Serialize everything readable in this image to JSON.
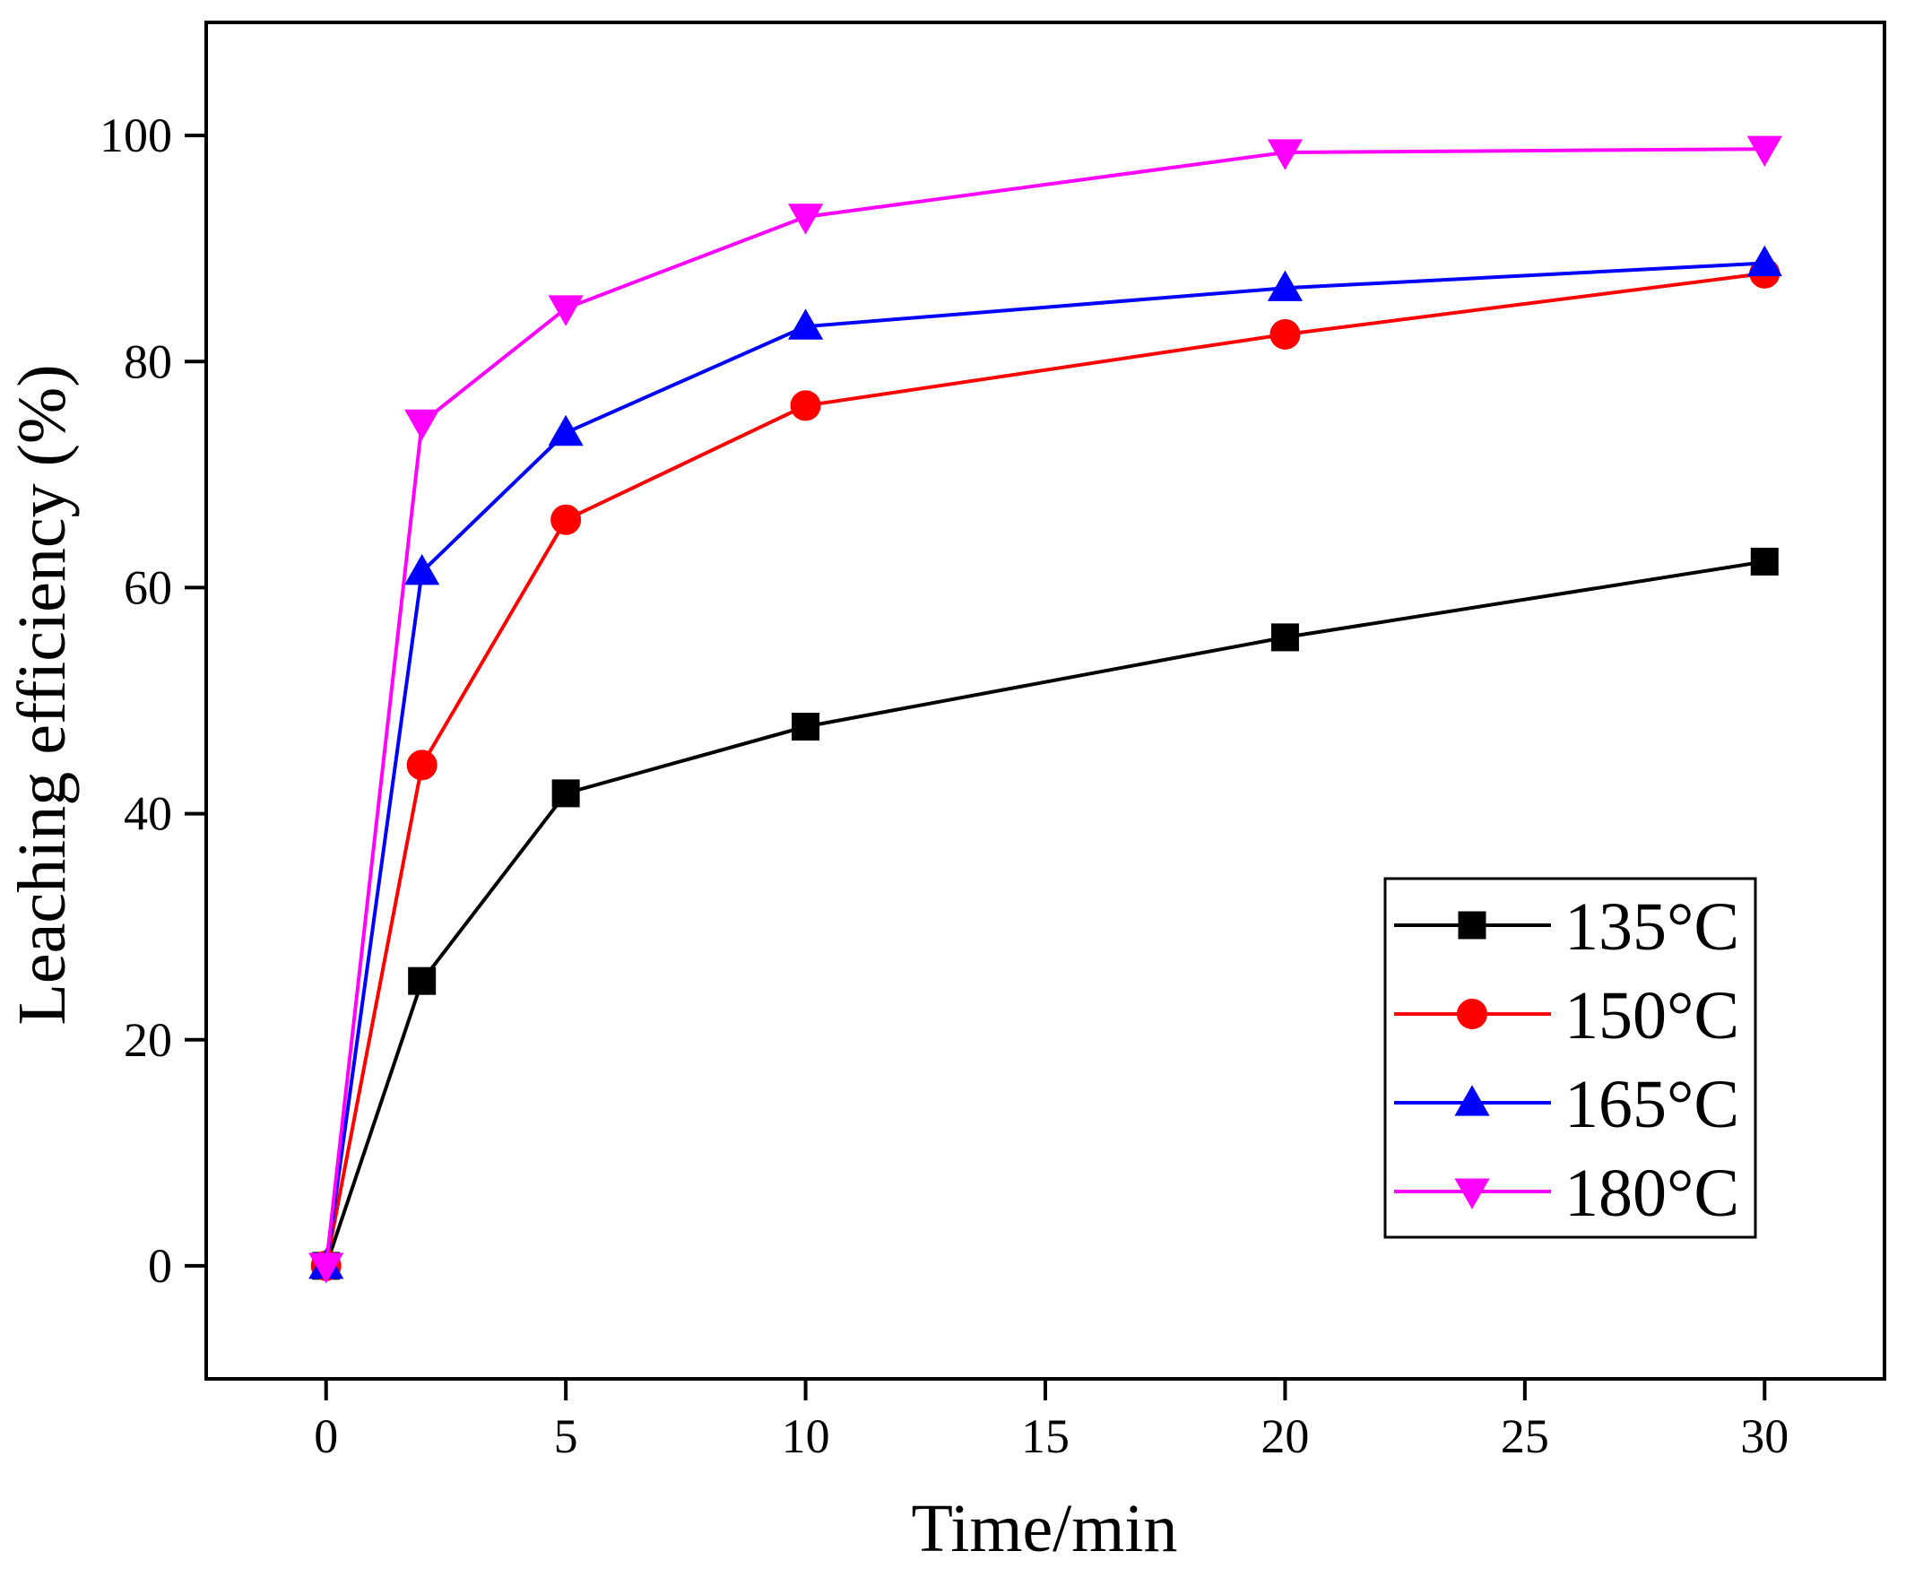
{
  "chart_data": {
    "type": "line",
    "title": "",
    "xlabel": "Time/min",
    "ylabel": "Leaching efficiency (%)",
    "xlim": [
      -2.5,
      32.5
    ],
    "ylim": [
      -10,
      110
    ],
    "xticks": [
      0,
      5,
      10,
      15,
      20,
      25,
      30
    ],
    "yticks": [
      0,
      20,
      40,
      60,
      80,
      100
    ],
    "x": [
      0,
      2,
      5,
      10,
      20,
      30
    ],
    "grid": false,
    "legend_position": "lower-right",
    "series": [
      {
        "name": "135°C",
        "color": "#000000",
        "marker": "square",
        "values": [
          0,
          25.2,
          41.8,
          47.7,
          55.6,
          62.3
        ]
      },
      {
        "name": "150°C",
        "color": "#ff0000",
        "marker": "circle",
        "values": [
          0,
          44.3,
          66.0,
          76.1,
          82.4,
          87.8
        ]
      },
      {
        "name": "165°C",
        "color": "#0000ff",
        "marker": "triangle-up",
        "values": [
          0,
          61.4,
          73.7,
          83.1,
          86.5,
          88.7
        ]
      },
      {
        "name": "180°C",
        "color": "#ff00ff",
        "marker": "triangle-down",
        "values": [
          0,
          74.6,
          84.7,
          92.8,
          98.5,
          98.8
        ]
      }
    ]
  }
}
